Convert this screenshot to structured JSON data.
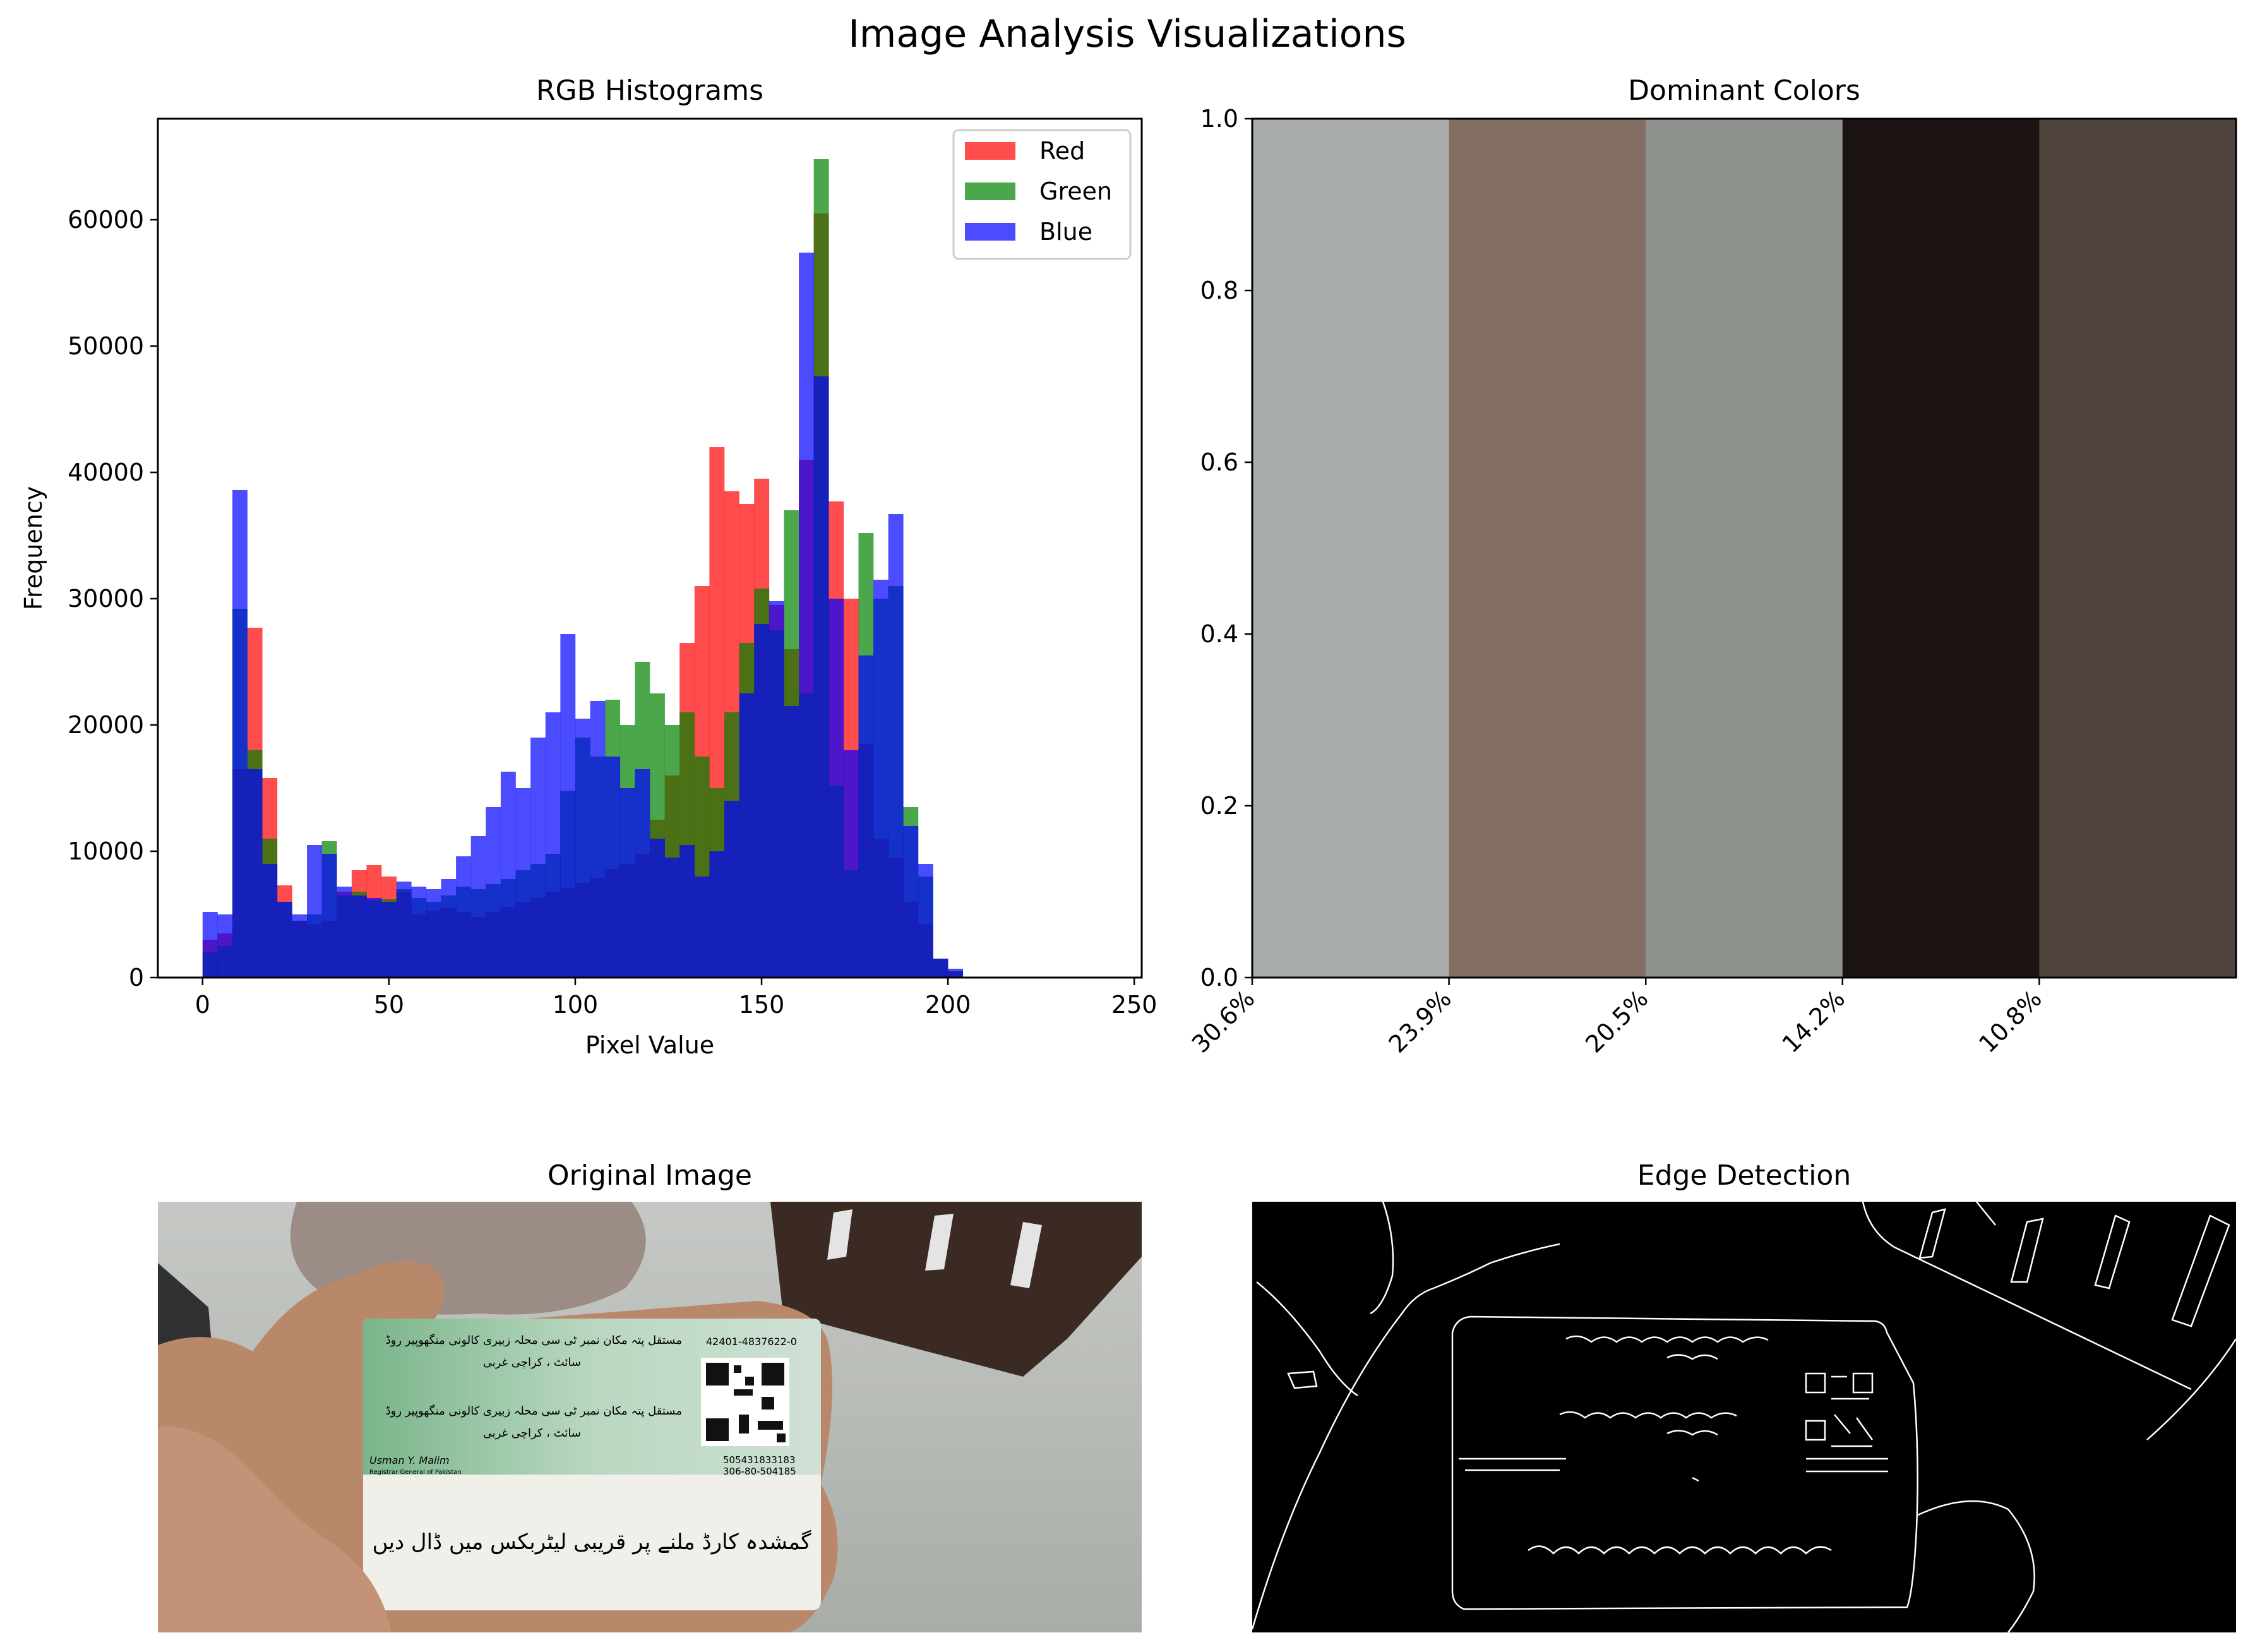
{
  "figure_title": "Image Analysis Visualizations",
  "chart_data": [
    {
      "type": "bar",
      "title": "RGB Histograms",
      "xlabel": "Pixel Value",
      "ylabel": "Frequency",
      "xlim": [
        -12,
        252
      ],
      "ylim": [
        0,
        68000
      ],
      "xticks": [
        0,
        50,
        100,
        150,
        200,
        250
      ],
      "yticks": [
        0,
        10000,
        20000,
        30000,
        40000,
        50000,
        60000
      ],
      "grid": false,
      "legend_position": "top-right",
      "bin_width": 4,
      "bin_starts": [
        0,
        4,
        8,
        12,
        16,
        20,
        24,
        28,
        32,
        36,
        40,
        44,
        48,
        52,
        56,
        60,
        64,
        68,
        72,
        76,
        80,
        84,
        88,
        92,
        96,
        100,
        104,
        108,
        112,
        116,
        120,
        124,
        128,
        132,
        136,
        140,
        144,
        148,
        152,
        156,
        160,
        164,
        168,
        172,
        176,
        180,
        184,
        188,
        192,
        196,
        200
      ],
      "series": [
        {
          "name": "Red",
          "color": "#ff0000",
          "opacity": 0.7,
          "values": [
            3000,
            3500,
            16500,
            27700,
            15800,
            7300,
            4500,
            4200,
            4500,
            6800,
            8500,
            8900,
            8000,
            6800,
            5000,
            5300,
            5500,
            5200,
            4800,
            5200,
            5600,
            6000,
            6300,
            6800,
            7100,
            7500,
            7900,
            8600,
            9000,
            9800,
            12500,
            16000,
            26500,
            31000,
            42000,
            38500,
            37500,
            39500,
            29500,
            26000,
            41000,
            60500,
            37700,
            30000,
            18500,
            11000,
            9500,
            6000,
            4200,
            1500,
            500
          ]
        },
        {
          "name": "Green",
          "color": "#008000",
          "opacity": 0.7,
          "values": [
            2000,
            2500,
            29200,
            18000,
            11000,
            6000,
            4500,
            5000,
            10800,
            6500,
            6800,
            6100,
            6200,
            7000,
            6300,
            6000,
            6500,
            7200,
            7000,
            7400,
            7800,
            8500,
            9000,
            9800,
            14800,
            19000,
            17500,
            22000,
            20000,
            25000,
            22500,
            20000,
            21000,
            17500,
            15000,
            21000,
            26500,
            30800,
            27500,
            37000,
            22500,
            64800,
            15200,
            8500,
            35200,
            30000,
            31000,
            13500,
            8000,
            1500,
            500
          ]
        },
        {
          "name": "Blue",
          "color": "#0000ff",
          "opacity": 0.7,
          "values": [
            5200,
            5000,
            38600,
            16500,
            9000,
            6000,
            5000,
            10500,
            9800,
            7200,
            6500,
            6300,
            6000,
            7600,
            7200,
            7000,
            7800,
            9600,
            11200,
            13500,
            16300,
            15000,
            19000,
            21000,
            27200,
            20500,
            21900,
            17500,
            15000,
            16500,
            11000,
            9500,
            10500,
            8000,
            10000,
            14000,
            22500,
            28000,
            29800,
            21500,
            57400,
            47600,
            30000,
            18000,
            25500,
            31500,
            36700,
            12000,
            9000,
            1500,
            700
          ]
        }
      ]
    },
    {
      "type": "bar",
      "title": "Dominant Colors",
      "ylim": [
        0,
        1.0
      ],
      "yticks": [
        0.0,
        0.2,
        0.4,
        0.6,
        0.8,
        1.0
      ],
      "ytick_labels": [
        "0.0",
        "0.2",
        "0.4",
        "0.6",
        "0.8",
        "1.0"
      ],
      "categories": [
        "30.6%",
        "23.9%",
        "20.5%",
        "14.2%",
        "10.8%"
      ],
      "values": [
        1,
        1,
        1,
        1,
        1
      ],
      "colors": [
        "#a8adab",
        "#836e64",
        "#8e928c",
        "#1b1412",
        "#4f433d"
      ]
    }
  ],
  "panels": {
    "original_image": {
      "title": "Original Image"
    },
    "edge_detection": {
      "title": "Edge Detection"
    }
  },
  "card": {
    "id_number": "42401-4837622-0",
    "serial_line1": "505431833183",
    "serial_line2": "306-80-504185",
    "signatory_name": "Usman Y. Malim",
    "signatory_title": "Registrar General of Pakistan",
    "urdu_note": "گمشدہ کارڈ ملنے پر قریبی لیٹربکس میں ڈال دیں",
    "urdu_line1": "مستقل پتہ مکان نمبر ٹی سی محلہ زبیری کالونی منگھوپیر روڈ",
    "urdu_line2": "سائٹ ، کراچی غربی"
  }
}
